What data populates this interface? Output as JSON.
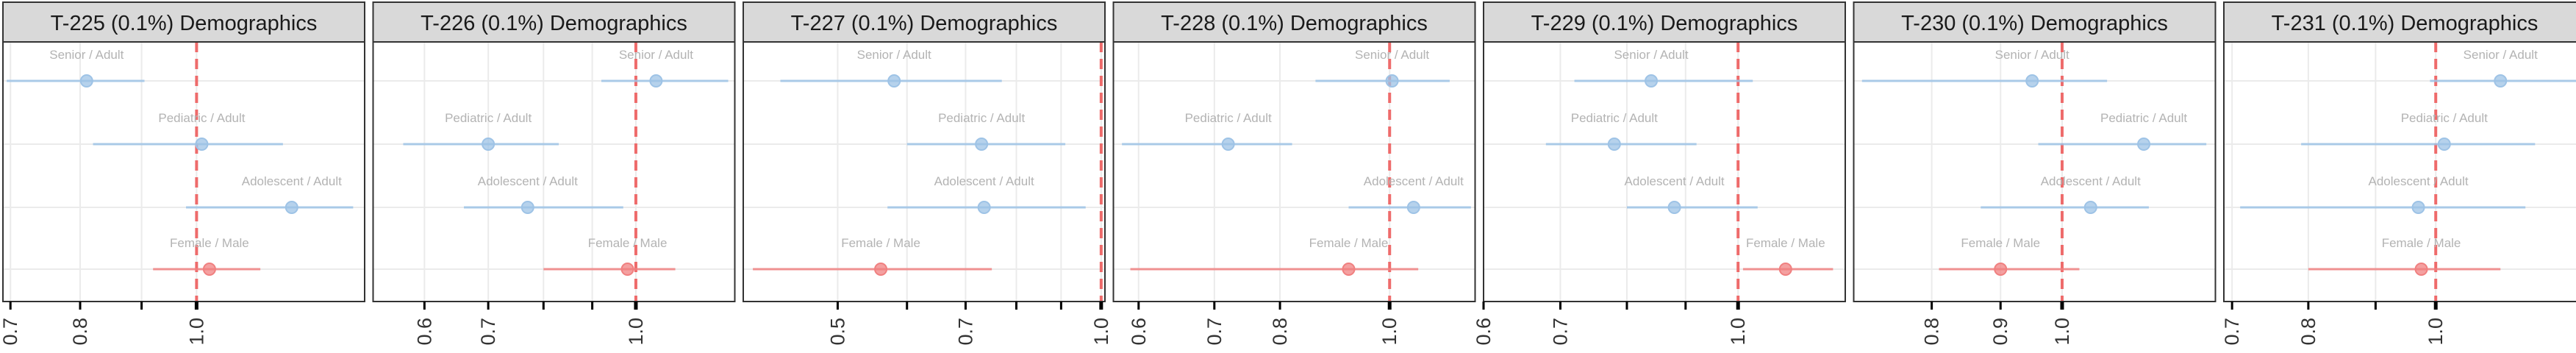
{
  "chart_data": [
    {
      "type": "scatter",
      "title": "T-225 (0.1%) Demographics",
      "xscale": "log",
      "ticks": [
        0.7,
        0.8,
        0.9,
        1.0
      ],
      "tick_labels": [
        "0.7",
        "0.8",
        "",
        "1.0"
      ],
      "xlim": [
        0.69,
        1.38
      ],
      "reference": 1.0,
      "grid": true,
      "rows": [
        {
          "label": "Senior / Adult",
          "est": 0.81,
          "lo": 0.695,
          "hi": 0.905,
          "color": "#9ec3e6"
        },
        {
          "label": "Pediatric / Adult",
          "est": 1.01,
          "lo": 0.82,
          "hi": 1.18,
          "color": "#9ec3e6"
        },
        {
          "label": "Adolescent / Adult",
          "est": 1.2,
          "lo": 0.98,
          "hi": 1.35,
          "color": "#9ec3e6"
        },
        {
          "label": "Female / Male",
          "est": 1.025,
          "lo": 0.92,
          "hi": 1.13,
          "color": "#f08080"
        }
      ]
    },
    {
      "type": "scatter",
      "title": "T-226 (0.1%) Demographics",
      "xscale": "log",
      "ticks": [
        0.6,
        0.7,
        0.8,
        0.9,
        1.0
      ],
      "tick_labels": [
        "0.6",
        "0.7",
        "",
        "",
        "1.0"
      ],
      "xlim": [
        0.53,
        1.27
      ],
      "reference": 1.0,
      "grid": true,
      "rows": [
        {
          "label": "Senior / Adult",
          "est": 1.05,
          "lo": 0.92,
          "hi": 1.25,
          "color": "#9ec3e6"
        },
        {
          "label": "Pediatric / Adult",
          "est": 0.7,
          "lo": 0.57,
          "hi": 0.83,
          "color": "#9ec3e6"
        },
        {
          "label": "Adolescent / Adult",
          "est": 0.77,
          "lo": 0.66,
          "hi": 0.97,
          "color": "#9ec3e6"
        },
        {
          "label": "Female / Male",
          "est": 0.98,
          "lo": 0.8,
          "hi": 1.1,
          "color": "#f08080"
        }
      ]
    },
    {
      "type": "scatter",
      "title": "T-227 (0.1%) Demographics",
      "xscale": "log",
      "ticks": [
        0.5,
        0.6,
        0.7,
        0.8,
        0.9,
        1.0
      ],
      "tick_labels": [
        "0.5",
        "",
        "0.7",
        "",
        "",
        "1.0"
      ],
      "xlim": [
        0.39,
        1.01
      ],
      "reference": 1.0,
      "grid": true,
      "rows": [
        {
          "label": "Senior / Adult",
          "est": 0.58,
          "lo": 0.43,
          "hi": 0.77,
          "color": "#9ec3e6"
        },
        {
          "label": "Pediatric / Adult",
          "est": 0.73,
          "lo": 0.6,
          "hi": 0.91,
          "color": "#9ec3e6"
        },
        {
          "label": "Adolescent / Adult",
          "est": 0.735,
          "lo": 0.57,
          "hi": 0.96,
          "color": "#9ec3e6"
        },
        {
          "label": "Female / Male",
          "est": 0.56,
          "lo": 0.4,
          "hi": 0.75,
          "color": "#f08080"
        }
      ]
    },
    {
      "type": "scatter",
      "title": "T-228 (0.1%) Demographics",
      "xscale": "log",
      "ticks": [
        0.6,
        0.7,
        0.8,
        1.0
      ],
      "tick_labels": [
        "0.6",
        "0.7",
        "0.8",
        "1.0"
      ],
      "xlim": [
        0.57,
        1.19
      ],
      "reference": 1.0,
      "grid": true,
      "rows": [
        {
          "label": "Senior / Adult",
          "est": 1.005,
          "lo": 0.86,
          "hi": 1.13,
          "color": "#9ec3e6"
        },
        {
          "label": "Pediatric / Adult",
          "est": 0.72,
          "lo": 0.58,
          "hi": 0.82,
          "color": "#9ec3e6"
        },
        {
          "label": "Adolescent / Adult",
          "est": 1.05,
          "lo": 0.92,
          "hi": 1.18,
          "color": "#9ec3e6"
        },
        {
          "label": "Female / Male",
          "est": 0.92,
          "lo": 0.59,
          "hi": 1.06,
          "color": "#f08080"
        }
      ]
    },
    {
      "type": "scatter",
      "title": "T-229 (0.1%) Demographics",
      "xscale": "log",
      "ticks": [
        0.6,
        0.7,
        0.8,
        0.9,
        1.0
      ],
      "tick_labels": [
        "0.6",
        "0.7",
        "",
        "",
        "1.0"
      ],
      "xlim": [
        0.6,
        1.24
      ],
      "reference": 1.0,
      "grid": true,
      "rows": [
        {
          "label": "Senior / Adult",
          "est": 0.84,
          "lo": 0.72,
          "hi": 1.03,
          "color": "#9ec3e6"
        },
        {
          "label": "Pediatric / Adult",
          "est": 0.78,
          "lo": 0.68,
          "hi": 0.92,
          "color": "#9ec3e6"
        },
        {
          "label": "Adolescent / Adult",
          "est": 0.88,
          "lo": 0.8,
          "hi": 1.04,
          "color": "#9ec3e6"
        },
        {
          "label": "Female / Male",
          "est": 1.1,
          "lo": 1.01,
          "hi": 1.21,
          "color": "#f08080"
        }
      ]
    },
    {
      "type": "scatter",
      "title": "T-230 (0.1%) Demographics",
      "xscale": "log",
      "ticks": [
        0.8,
        0.9,
        1.0
      ],
      "tick_labels": [
        "0.8",
        "0.9",
        "1.0"
      ],
      "xlim": [
        0.7,
        1.3
      ],
      "reference": 1.0,
      "grid": true,
      "rows": [
        {
          "label": "Senior / Adult",
          "est": 0.95,
          "lo": 0.71,
          "hi": 1.08,
          "color": "#9ec3e6"
        },
        {
          "label": "Pediatric / Adult",
          "est": 1.15,
          "lo": 0.96,
          "hi": 1.28,
          "color": "#9ec3e6"
        },
        {
          "label": "Adolescent / Adult",
          "est": 1.05,
          "lo": 0.87,
          "hi": 1.16,
          "color": "#9ec3e6"
        },
        {
          "label": "Female / Male",
          "est": 0.9,
          "lo": 0.81,
          "hi": 1.03,
          "color": "#f08080"
        }
      ]
    },
    {
      "type": "scatter",
      "title": "T-231 (0.1%) Demographics",
      "xscale": "log",
      "ticks": [
        0.7,
        0.8,
        0.9,
        1.0
      ],
      "tick_labels": [
        "0.7",
        "0.8",
        "",
        "1.0"
      ],
      "xlim": [
        0.69,
        1.3
      ],
      "reference": 1.0,
      "grid": true,
      "rows": [
        {
          "label": "Senior / Adult",
          "est": 1.12,
          "lo": 0.99,
          "hi": 1.28,
          "color": "#9ec3e6"
        },
        {
          "label": "Pediatric / Adult",
          "est": 1.015,
          "lo": 0.79,
          "hi": 1.19,
          "color": "#9ec3e6"
        },
        {
          "label": "Adolescent / Adult",
          "est": 0.97,
          "lo": 0.71,
          "hi": 1.17,
          "color": "#9ec3e6"
        },
        {
          "label": "Female / Male",
          "est": 0.975,
          "lo": 0.8,
          "hi": 1.12,
          "color": "#f08080"
        }
      ]
    }
  ]
}
